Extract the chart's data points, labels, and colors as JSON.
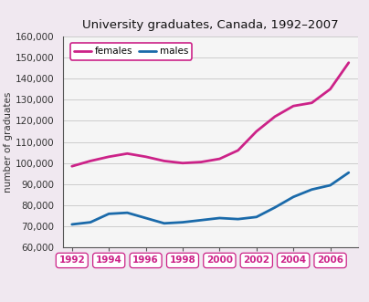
{
  "title": "University graduates, Canada, 1992–2007",
  "ylabel": "number of graduates",
  "years": [
    1992,
    1993,
    1994,
    1995,
    1996,
    1997,
    1998,
    1999,
    2000,
    2001,
    2002,
    2003,
    2004,
    2005,
    2006,
    2007
  ],
  "females": [
    98500,
    101000,
    103000,
    104500,
    103000,
    101000,
    100000,
    100500,
    102000,
    106000,
    115000,
    122000,
    127000,
    128500,
    135000,
    147500
  ],
  "males": [
    71000,
    72000,
    76000,
    76500,
    74000,
    71500,
    72000,
    73000,
    74000,
    73500,
    74500,
    79000,
    84000,
    87500,
    89500,
    95500
  ],
  "female_color": "#cc2288",
  "male_color": "#1a6aaa",
  "bg_outer_color": "#f0e8f0",
  "bg_plot_color": "#f5f5f5",
  "ylim": [
    60000,
    160000
  ],
  "yticks": [
    60000,
    70000,
    80000,
    90000,
    100000,
    110000,
    120000,
    130000,
    140000,
    150000,
    160000
  ],
  "xtick_years": [
    1992,
    1994,
    1996,
    1998,
    2000,
    2002,
    2004,
    2006
  ],
  "legend_labels": [
    "females",
    "males"
  ],
  "grid_color": "#cccccc",
  "tick_label_color": "#cc2288",
  "spine_color": "#555555"
}
